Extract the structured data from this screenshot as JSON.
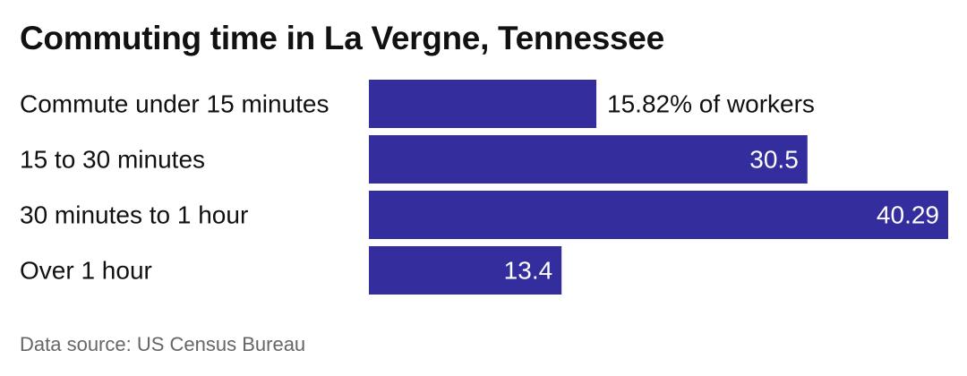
{
  "chart_data": {
    "type": "bar",
    "orientation": "horizontal",
    "title": "Commuting time in La Vergne, Tennessee",
    "categories": [
      "Commute under 15 minutes",
      "15 to 30 minutes",
      "30 minutes to 1 hour",
      "Over 1 hour"
    ],
    "values": [
      15.82,
      30.5,
      40.29,
      13.4
    ],
    "value_labels": [
      "15.82% of workers",
      "30.5",
      "40.29",
      "13.4"
    ],
    "xlim": [
      0,
      40.29
    ],
    "grid": false,
    "bar_color": "#332d9e",
    "source": "Data source: US Census Bureau"
  }
}
